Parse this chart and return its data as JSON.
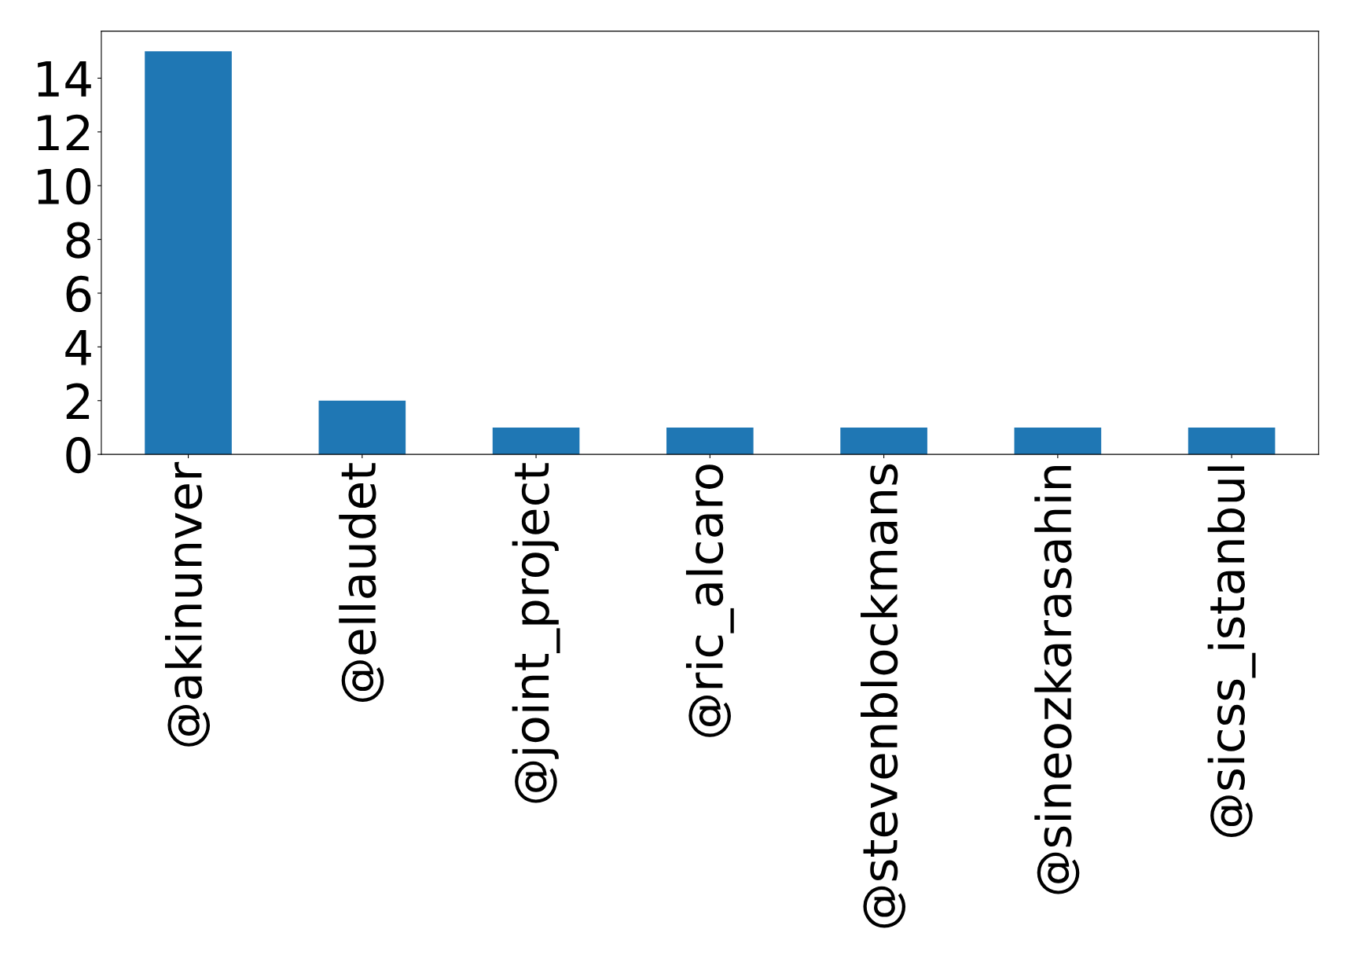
{
  "chart_data": {
    "type": "bar",
    "categories": [
      "@akinunver",
      "@ellaudet",
      "@joint_project",
      "@ric_alcaro",
      "@stevenblockmans",
      "@sineozkarasahin",
      "@sicss_istanbul"
    ],
    "values": [
      15,
      2,
      1,
      1,
      1,
      1,
      1
    ],
    "color": "#1f77b4",
    "ylim": [
      0,
      15.75
    ],
    "yticks": [
      0,
      2,
      4,
      6,
      8,
      10,
      12,
      14
    ],
    "grid": false
  }
}
